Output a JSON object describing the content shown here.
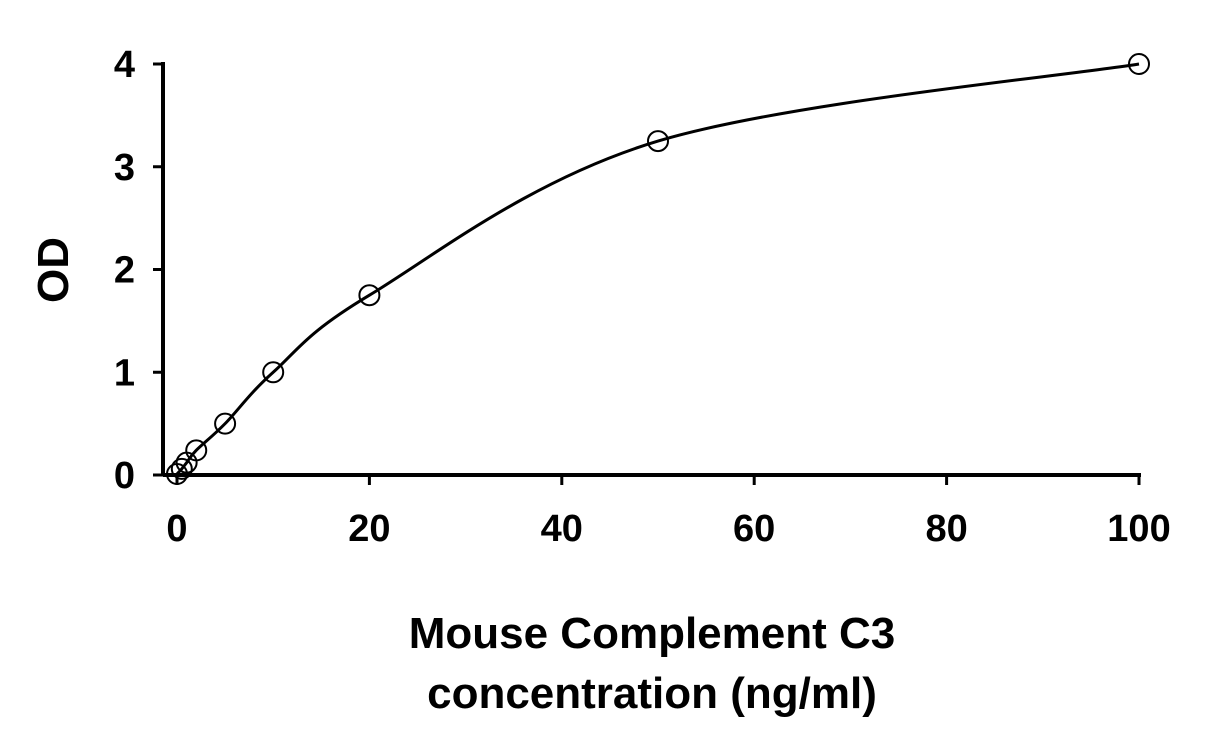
{
  "chart_data": {
    "type": "scatter",
    "title": "",
    "xlabel_lines": [
      "Mouse Complement C3",
      "concentration (ng/ml)"
    ],
    "ylabel": "OD",
    "xlim": [
      0,
      100
    ],
    "ylim": [
      0,
      4
    ],
    "x_ticks": [
      0,
      20,
      40,
      60,
      80,
      100
    ],
    "y_ticks": [
      0,
      1,
      2,
      3,
      4
    ],
    "x_tick_labels": [
      "0",
      "20",
      "40",
      "60",
      "80",
      "100"
    ],
    "y_tick_labels": [
      "0",
      "1",
      "2",
      "3",
      "4"
    ],
    "grid": false,
    "legend": "none",
    "marker": "open-circle",
    "fit_line": "smooth-curve",
    "color": "#000000",
    "points": [
      {
        "x": 0,
        "y": 0.01
      },
      {
        "x": 0.5,
        "y": 0.06
      },
      {
        "x": 1,
        "y": 0.12
      },
      {
        "x": 2,
        "y": 0.24
      },
      {
        "x": 5,
        "y": 0.5
      },
      {
        "x": 10,
        "y": 1.0
      },
      {
        "x": 20,
        "y": 1.75
      },
      {
        "x": 50,
        "y": 3.25
      },
      {
        "x": 100,
        "y": 4.0
      }
    ]
  }
}
